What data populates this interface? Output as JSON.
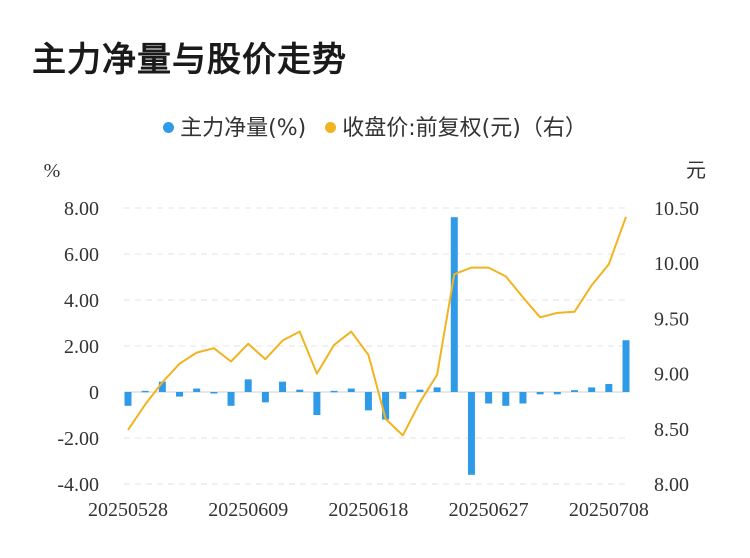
{
  "chart_data": {
    "type": "bar+line",
    "title": "主力净量与股价走势",
    "left_unit": "%",
    "right_unit": "元",
    "legend": [
      {
        "label": "主力净量(%)",
        "color": "#2f9be8"
      },
      {
        "label": "收盘价:前复权(元)（右）",
        "color": "#f2b320"
      }
    ],
    "x_tick_labels": [
      "20250528",
      "20250609",
      "20250618",
      "20250627",
      "20250708"
    ],
    "x_tick_index": [
      0,
      7,
      14,
      21,
      28
    ],
    "y_left": {
      "min": -4,
      "max": 8,
      "ticks": [
        "8.00",
        "6.00",
        "4.00",
        "2.00",
        "0",
        "-2.00",
        "-4.00"
      ],
      "tick_values": [
        8,
        6,
        4,
        2,
        0,
        -2,
        -4
      ]
    },
    "y_right": {
      "min": 8,
      "max": 10.5,
      "ticks": [
        "10.50",
        "10.00",
        "9.50",
        "9.00",
        "8.50",
        "8.00"
      ],
      "tick_values": [
        10.5,
        10,
        9.5,
        9,
        8.5,
        8
      ]
    },
    "series": [
      {
        "name": "主力净量(%)",
        "type": "bar",
        "values": [
          -0.6,
          0.05,
          0.45,
          -0.2,
          0.15,
          -0.05,
          -0.6,
          0.55,
          -0.45,
          0.45,
          0.1,
          -1.0,
          0.05,
          0.15,
          -0.8,
          -1.2,
          -0.3,
          0.1,
          0.2,
          7.6,
          -3.6,
          -0.5,
          -0.6,
          -0.5,
          -0.1,
          -0.1,
          0.08,
          0.2,
          0.35,
          2.25
        ]
      },
      {
        "name": "收盘价:前复权(元)（右）",
        "type": "line",
        "values": [
          8.49,
          8.72,
          8.92,
          9.09,
          9.19,
          9.23,
          9.11,
          9.27,
          9.13,
          9.3,
          9.38,
          9.0,
          9.26,
          9.38,
          9.17,
          8.59,
          8.44,
          8.74,
          8.99,
          9.9,
          9.96,
          9.96,
          9.88,
          9.69,
          9.51,
          9.55,
          9.56,
          9.8,
          9.99,
          10.42
        ]
      }
    ]
  }
}
